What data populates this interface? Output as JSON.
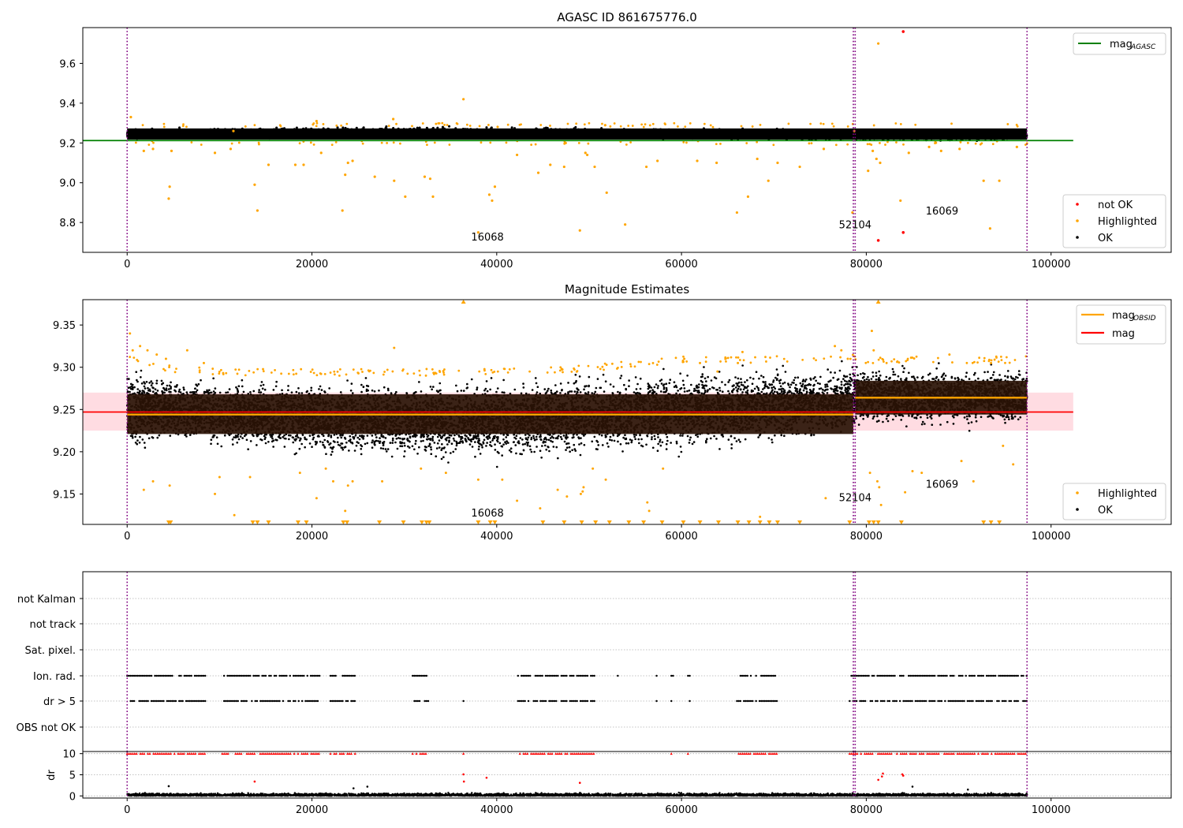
{
  "figure": {
    "panel1_title": "AGASC ID 861675776.0",
    "panel2_title": "Magnitude Estimates"
  },
  "colors": {
    "ok": "#000000",
    "highlighted": "#ffa500",
    "not_ok": "#ff0000",
    "mag_agasc": "#008000",
    "mag": "#ff0000",
    "mag_obsid": "#ffa500",
    "band_mag": "#ffc0cb",
    "band_obsid": "#2a1205",
    "obsid_boundary": "#800080",
    "grid": "#b0b0b0"
  },
  "chart_data": [
    {
      "type": "scatter",
      "title": "AGASC ID 861675776.0",
      "xlim": [
        -4800,
        113000
      ],
      "ylim": [
        8.65,
        9.78
      ],
      "xticks": [
        0,
        20000,
        40000,
        60000,
        80000,
        100000
      ],
      "xtick_labels": [
        "0",
        "20000",
        "40000",
        "60000",
        "80000",
        "100000"
      ],
      "yticks": [
        8.8,
        9.0,
        9.2,
        9.4,
        9.6
      ],
      "ytick_labels": [
        "8.8",
        "9.0",
        "9.2",
        "9.4",
        "9.6"
      ],
      "legend_lines": [
        {
          "label_main": "mag",
          "label_sub": "AGASC",
          "color": "#008000",
          "position": "top-right"
        }
      ],
      "legend_points": [
        {
          "label": "not OK",
          "color": "#ff0000"
        },
        {
          "label": "Highlighted",
          "color": "#ffa500"
        },
        {
          "label": "OK",
          "color": "#000000"
        }
      ],
      "mag_agasc": {
        "y": 9.212,
        "x": [
          -4800,
          102400
        ]
      },
      "ok_band": {
        "x": [
          0,
          97400
        ],
        "y_center": 9.245,
        "half_width": 0.035
      },
      "highlighted_points": [
        [
          400,
          9.33
        ],
        [
          1800,
          9.16
        ],
        [
          2800,
          9.17
        ],
        [
          4500,
          8.92
        ],
        [
          4600,
          8.98
        ],
        [
          4800,
          9.16
        ],
        [
          9500,
          9.15
        ],
        [
          11200,
          9.17
        ],
        [
          11500,
          9.26
        ],
        [
          13800,
          8.99
        ],
        [
          14100,
          8.86
        ],
        [
          15300,
          9.09
        ],
        [
          18200,
          9.09
        ],
        [
          19100,
          9.09
        ],
        [
          20500,
          9.31
        ],
        [
          21000,
          9.15
        ],
        [
          23300,
          8.86
        ],
        [
          23600,
          9.04
        ],
        [
          23900,
          9.1
        ],
        [
          24400,
          9.11
        ],
        [
          26800,
          9.03
        ],
        [
          28800,
          9.32
        ],
        [
          28900,
          9.01
        ],
        [
          30100,
          8.93
        ],
        [
          32200,
          9.03
        ],
        [
          32800,
          9.02
        ],
        [
          33100,
          8.93
        ],
        [
          36400,
          9.42
        ],
        [
          38000,
          8.75
        ],
        [
          39200,
          8.94
        ],
        [
          39500,
          8.91
        ],
        [
          39800,
          8.98
        ],
        [
          42200,
          9.14
        ],
        [
          44500,
          9.05
        ],
        [
          45800,
          9.09
        ],
        [
          47300,
          9.08
        ],
        [
          49000,
          8.76
        ],
        [
          49600,
          9.15
        ],
        [
          49800,
          9.14
        ],
        [
          50600,
          9.08
        ],
        [
          51900,
          8.95
        ],
        [
          53900,
          8.79
        ],
        [
          56200,
          9.08
        ],
        [
          57400,
          9.11
        ],
        [
          61700,
          9.11
        ],
        [
          63800,
          9.1
        ],
        [
          66000,
          8.85
        ],
        [
          67200,
          8.93
        ],
        [
          68200,
          9.12
        ],
        [
          69400,
          9.01
        ],
        [
          70400,
          9.1
        ],
        [
          72800,
          9.08
        ],
        [
          75400,
          9.17
        ],
        [
          78500,
          8.85
        ],
        [
          78700,
          9.26
        ],
        [
          80200,
          9.06
        ],
        [
          80700,
          9.16
        ],
        [
          81100,
          9.12
        ],
        [
          81300,
          9.7
        ],
        [
          81500,
          9.1
        ],
        [
          83700,
          8.91
        ],
        [
          84600,
          9.15
        ],
        [
          86800,
          9.18
        ],
        [
          88100,
          9.16
        ],
        [
          90100,
          9.17
        ],
        [
          92700,
          9.01
        ],
        [
          93400,
          8.77
        ],
        [
          94400,
          9.01
        ],
        [
          96300,
          9.18
        ]
      ],
      "not_ok_points": [
        [
          81300,
          8.71
        ],
        [
          84000,
          8.75
        ],
        [
          84000,
          9.76
        ]
      ],
      "obsid_lines": [
        0,
        78600,
        78800,
        97400
      ],
      "obsid_labels": [
        {
          "text": "16068",
          "x": 39000,
          "y": 8.71
        },
        {
          "text": "52104",
          "x": 78800,
          "y": 8.77
        },
        {
          "text": "16069",
          "x": 88200,
          "y": 8.84
        }
      ]
    },
    {
      "type": "scatter",
      "title": "Magnitude Estimates",
      "xlim": [
        -4800,
        113000
      ],
      "ylim": [
        9.114,
        9.38
      ],
      "xticks": [
        0,
        20000,
        40000,
        60000,
        80000,
        100000
      ],
      "xtick_labels": [
        "0",
        "20000",
        "40000",
        "60000",
        "80000",
        "100000"
      ],
      "yticks": [
        9.15,
        9.2,
        9.25,
        9.3,
        9.35
      ],
      "ytick_labels": [
        "9.15",
        "9.20",
        "9.25",
        "9.30",
        "9.35"
      ],
      "legend_lines": [
        {
          "label_main": "mag",
          "label_sub": "OBSID",
          "color": "#ffa500"
        },
        {
          "label_main": "mag",
          "label_sub": "",
          "color": "#ff0000"
        }
      ],
      "legend_points": [
        {
          "label": "Highlighted",
          "color": "#ffa500"
        },
        {
          "label": "OK",
          "color": "#000000"
        }
      ],
      "mag": {
        "y": 9.247,
        "band": [
          9.225,
          9.27
        ],
        "x": [
          -4800,
          102400
        ]
      },
      "mag_obsid": [
        {
          "x": [
            0,
            78600
          ],
          "y": 9.244,
          "band": [
            9.221,
            9.268
          ]
        },
        {
          "x": [
            78800,
            97400
          ],
          "y": 9.264,
          "band": [
            9.244,
            9.284
          ]
        }
      ],
      "ok_envelope": [
        [
          0,
          9.195,
          9.31
        ],
        [
          4000,
          9.205,
          9.295
        ],
        [
          10000,
          9.2,
          9.29
        ],
        [
          20000,
          9.19,
          9.29
        ],
        [
          30000,
          9.185,
          9.29
        ],
        [
          40000,
          9.185,
          9.29
        ],
        [
          50000,
          9.19,
          9.295
        ],
        [
          60000,
          9.195,
          9.305
        ],
        [
          70000,
          9.205,
          9.305
        ],
        [
          78600,
          9.215,
          9.31
        ],
        [
          78800,
          9.225,
          9.305
        ],
        [
          88000,
          9.225,
          9.305
        ],
        [
          97400,
          9.225,
          9.305
        ]
      ],
      "highlighted_points": [
        [
          300,
          9.34
        ],
        [
          600,
          9.32
        ],
        [
          1400,
          9.325
        ],
        [
          2200,
          9.32
        ],
        [
          3200,
          9.315
        ],
        [
          4200,
          9.31
        ],
        [
          6500,
          9.32
        ],
        [
          8300,
          9.305
        ],
        [
          1800,
          9.155
        ],
        [
          2800,
          9.165
        ],
        [
          4600,
          9.16
        ],
        [
          9500,
          9.15
        ],
        [
          10000,
          9.17
        ],
        [
          11600,
          9.125
        ],
        [
          13300,
          9.17
        ],
        [
          18700,
          9.175
        ],
        [
          20500,
          9.145
        ],
        [
          21500,
          9.18
        ],
        [
          22300,
          9.165
        ],
        [
          23600,
          9.13
        ],
        [
          23900,
          9.16
        ],
        [
          24400,
          9.165
        ],
        [
          27600,
          9.165
        ],
        [
          28900,
          9.323
        ],
        [
          31800,
          9.18
        ],
        [
          34500,
          9.175
        ],
        [
          38000,
          9.167
        ],
        [
          40600,
          9.167
        ],
        [
          42200,
          9.142
        ],
        [
          44700,
          9.133
        ],
        [
          46600,
          9.155
        ],
        [
          47600,
          9.147
        ],
        [
          49100,
          9.15
        ],
        [
          49300,
          9.153
        ],
        [
          49400,
          9.158
        ],
        [
          50400,
          9.18
        ],
        [
          51800,
          9.167
        ],
        [
          56300,
          9.14
        ],
        [
          56500,
          9.13
        ],
        [
          58000,
          9.18
        ],
        [
          60300,
          9.31
        ],
        [
          62000,
          9.305
        ],
        [
          63900,
          9.295
        ],
        [
          66100,
          9.305
        ],
        [
          66600,
          9.318
        ],
        [
          68500,
          9.123
        ],
        [
          75600,
          9.145
        ],
        [
          76600,
          9.325
        ],
        [
          77300,
          9.32
        ],
        [
          78000,
          9.31
        ],
        [
          80400,
          9.175
        ],
        [
          80600,
          9.343
        ],
        [
          80800,
          9.32
        ],
        [
          81200,
          9.165
        ],
        [
          81400,
          9.158
        ],
        [
          81600,
          9.137
        ],
        [
          84200,
          9.152
        ],
        [
          85000,
          9.177
        ],
        [
          86000,
          9.175
        ],
        [
          89000,
          9.315
        ],
        [
          90300,
          9.189
        ],
        [
          91600,
          9.165
        ],
        [
          93500,
          9.305
        ],
        [
          94800,
          9.207
        ],
        [
          95900,
          9.185
        ]
      ],
      "highlighted_below": [
        4500,
        4700,
        13600,
        14100,
        15300,
        18500,
        19400,
        23400,
        23800,
        27300,
        29900,
        31900,
        32400,
        32700,
        38000,
        39300,
        39800,
        45000,
        47300,
        49200,
        50700,
        52200,
        54300,
        55900,
        57900,
        60200,
        62000,
        64000,
        66100,
        67300,
        68500,
        69500,
        70400,
        72800,
        78200,
        80300,
        80800,
        81300,
        83800,
        92700,
        93500,
        94400
      ],
      "highlighted_above": [
        36400,
        81300
      ],
      "obsid_lines": [
        0,
        78600,
        78800,
        97400
      ],
      "obsid_labels": [
        {
          "text": "16068",
          "x": 39000,
          "y": 9.1235
        },
        {
          "text": "52104",
          "x": 78800,
          "y": 9.1415
        },
        {
          "text": "16069",
          "x": 88200,
          "y": 9.1575
        }
      ]
    },
    {
      "type": "scatter",
      "title": "",
      "xlim": [
        -4800,
        113000
      ],
      "categories": [
        "not Kalman",
        "not track",
        "Sat. pixel.",
        "Ion. rad.",
        "dr > 5",
        "OBS not OK"
      ],
      "flag_segments": {
        "ion_rad": [
          [
            0,
            8500
          ],
          [
            10300,
            20900
          ],
          [
            22000,
            24800
          ],
          [
            30900,
            32600
          ],
          [
            36400,
            36500
          ],
          [
            42300,
            50600
          ],
          [
            53100,
            53200
          ],
          [
            57300,
            57400
          ],
          [
            58900,
            59200
          ],
          [
            60700,
            60900
          ],
          [
            66000,
            70400
          ],
          [
            78200,
            97400
          ]
        ],
        "dr_gt_5": [
          [
            0,
            8500
          ],
          [
            10300,
            20900
          ],
          [
            22000,
            24800
          ],
          [
            30900,
            32600
          ],
          [
            36400,
            36500
          ],
          [
            42300,
            50600
          ],
          [
            53100,
            53200
          ],
          [
            57300,
            57400
          ],
          [
            58900,
            59200
          ],
          [
            60700,
            60900
          ],
          [
            66000,
            70400
          ],
          [
            78200,
            97400
          ]
        ]
      },
      "obsid_lines": [
        0,
        78600,
        78800,
        97400
      ]
    },
    {
      "type": "scatter",
      "ylabel": "dr",
      "xlim": [
        -4800,
        113000
      ],
      "ylim": [
        -0.5,
        10.5
      ],
      "xticks": [
        0,
        20000,
        40000,
        60000,
        80000,
        100000
      ],
      "xtick_labels": [
        "0",
        "20000",
        "40000",
        "60000",
        "80000",
        "100000"
      ],
      "yticks": [
        0,
        5,
        10
      ],
      "ytick_labels": [
        "0",
        "5",
        "10"
      ],
      "capped_segments": [
        [
          0,
          8500
        ],
        [
          10300,
          20900
        ],
        [
          22000,
          24800
        ],
        [
          30900,
          32600
        ],
        [
          36400,
          36500
        ],
        [
          42300,
          50600
        ],
        [
          53100,
          53200
        ],
        [
          57300,
          57400
        ],
        [
          58900,
          59200
        ],
        [
          60700,
          60900
        ],
        [
          66000,
          70400
        ],
        [
          78200,
          97400
        ]
      ],
      "scattered_points": [
        [
          4500,
          2.3
        ],
        [
          13800,
          3.4
        ],
        [
          36400,
          5.1
        ],
        [
          36450,
          3.4
        ],
        [
          38900,
          4.3
        ],
        [
          49000,
          3.1
        ],
        [
          81300,
          3.8
        ],
        [
          81700,
          4.6
        ],
        [
          81800,
          5.3
        ],
        [
          83900,
          5.1
        ],
        [
          84000,
          4.8
        ],
        [
          85000,
          2.2
        ],
        [
          91000,
          1.5
        ],
        [
          26000,
          2.2
        ],
        [
          24500,
          1.8
        ]
      ],
      "obsid_lines": [
        0,
        78600,
        78800,
        97400
      ]
    }
  ]
}
